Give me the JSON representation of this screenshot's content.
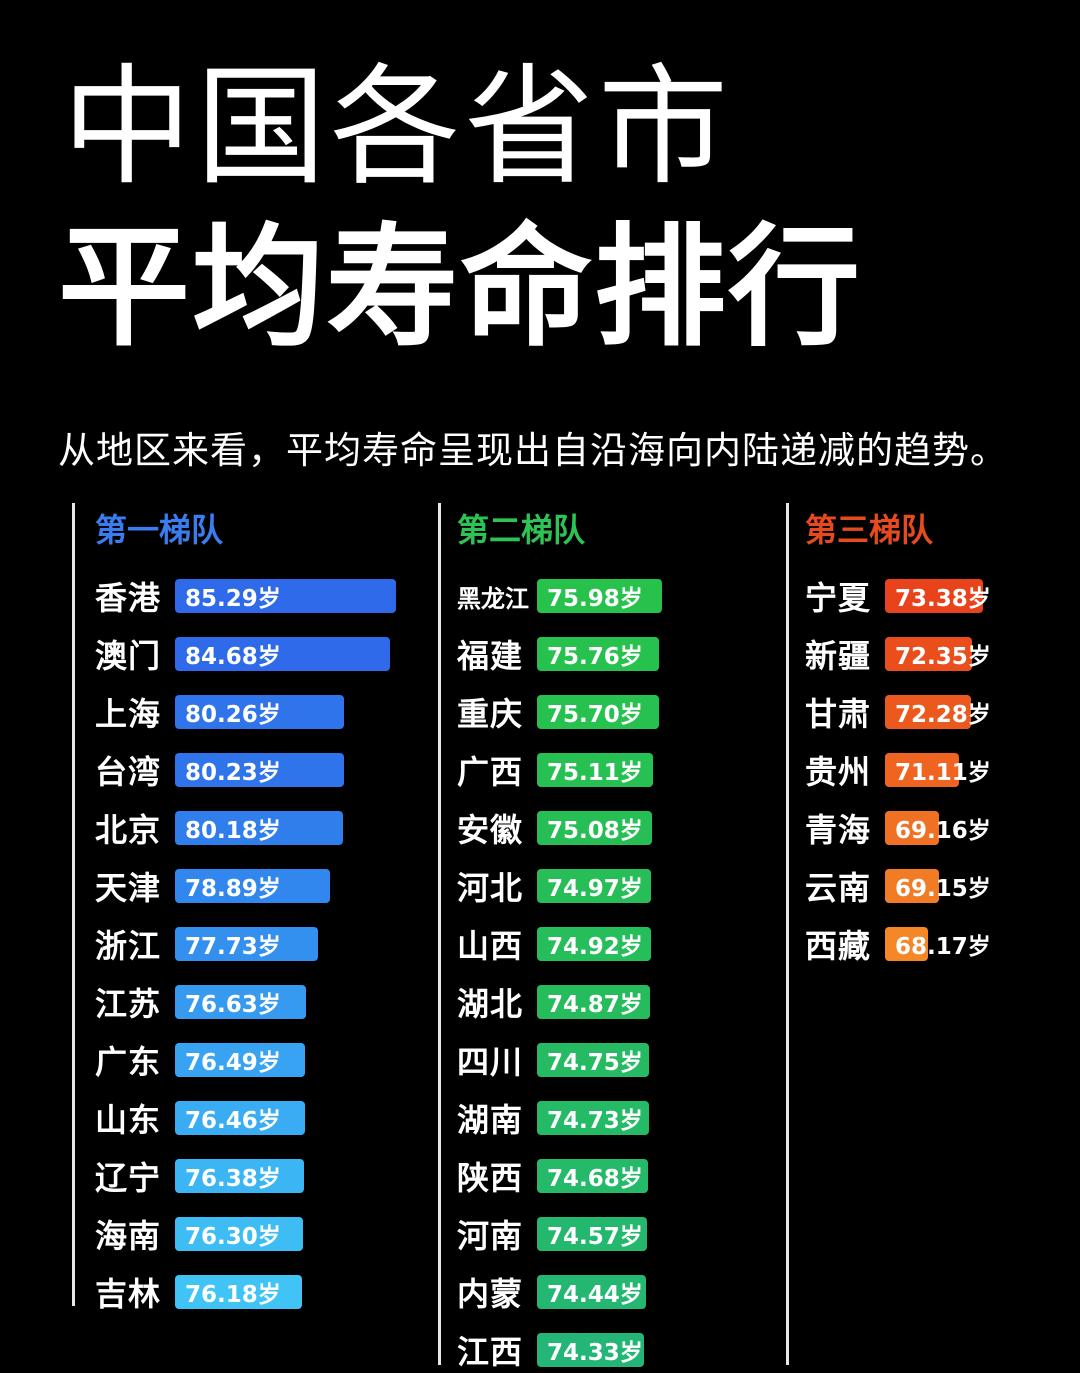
{
  "title_line1": "中国各省市",
  "title_line2": "平均寿命排行",
  "subtitle": "从地区来看，平均寿命呈现出自沿海向内陆递减的趋势。",
  "unit": "岁",
  "chart_data": [
    {
      "type": "bar",
      "title": "第一梯队",
      "categories": [
        "香港",
        "澳门",
        "上海",
        "台湾",
        "北京",
        "天津",
        "浙江",
        "江苏",
        "广东",
        "山东",
        "辽宁",
        "海南",
        "吉林"
      ],
      "values": [
        85.29,
        84.68,
        80.26,
        80.23,
        80.18,
        78.89,
        77.73,
        76.63,
        76.49,
        76.46,
        76.38,
        76.3,
        76.18
      ],
      "value_labels": [
        "85.29岁",
        "84.68岁",
        "80.26岁",
        "80.23岁",
        "80.18岁",
        "78.89岁",
        "77.73岁",
        "76.63岁",
        "76.49岁",
        "76.46岁",
        "76.38岁",
        "76.30岁",
        "76.18岁"
      ],
      "colors": [
        "#2e6ae9",
        "#2e6ae9",
        "#2f74ea",
        "#2f74ea",
        "#307dec",
        "#3287ee",
        "#3490ef",
        "#369af1",
        "#38a3f2",
        "#3aacf3",
        "#3cb5f4",
        "#3ebdf5",
        "#40c4f6"
      ],
      "heading_color": "#3a7df0"
    },
    {
      "type": "bar",
      "title": "第二梯队",
      "categories": [
        "黑龙江",
        "福建",
        "重庆",
        "广西",
        "安徽",
        "河北",
        "山西",
        "湖北",
        "四川",
        "湖南",
        "陕西",
        "河南",
        "内蒙",
        "江西"
      ],
      "values": [
        75.98,
        75.76,
        75.7,
        75.11,
        75.08,
        74.97,
        74.92,
        74.87,
        74.75,
        74.73,
        74.68,
        74.57,
        74.44,
        74.33
      ],
      "value_labels": [
        "75.98岁",
        "75.76岁",
        "75.70岁",
        "75.11岁",
        "75.08岁",
        "74.97岁",
        "74.92岁",
        "74.87岁",
        "74.75岁",
        "74.73岁",
        "74.68岁",
        "74.57岁",
        "74.44岁",
        "74.33岁"
      ],
      "colors": [
        "#27c24c",
        "#27c24e",
        "#27c150",
        "#27c052",
        "#27bf55",
        "#27be58",
        "#26bd5b",
        "#26bc5e",
        "#26bb62",
        "#25ba66",
        "#25b96a",
        "#24b86e",
        "#24b772",
        "#23b676"
      ],
      "heading_color": "#2ec455"
    },
    {
      "type": "bar",
      "title": "第三梯队",
      "categories": [
        "宁夏",
        "新疆",
        "甘肃",
        "贵州",
        "青海",
        "云南",
        "西藏"
      ],
      "values": [
        73.38,
        72.35,
        72.28,
        71.11,
        69.16,
        69.15,
        68.17
      ],
      "value_labels": [
        "73.38岁",
        "72.35岁",
        "72.28岁",
        "71.11岁",
        "69.16岁",
        "69.15岁",
        "68.17岁"
      ],
      "colors": [
        "#e8431a",
        "#ea4e1c",
        "#ec591e",
        "#ee6420",
        "#f07024",
        "#f27c26",
        "#f48828"
      ],
      "heading_color": "#e64a1e"
    }
  ]
}
